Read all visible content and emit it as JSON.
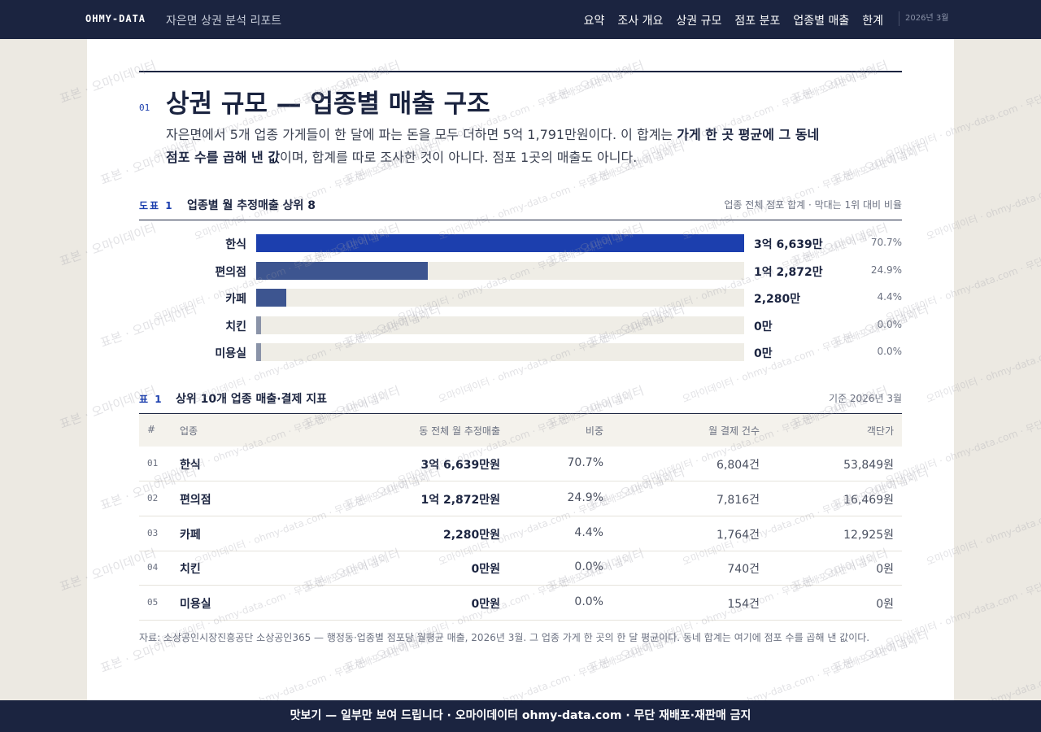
{
  "nav": {
    "brand": "OHMY-DATA",
    "report": "자은면 상권 분석 리포트",
    "links": [
      "요약",
      "조사 개요",
      "상권 규모",
      "점포 분포",
      "업종별 매출",
      "한계"
    ],
    "date": "2026년 3월"
  },
  "section": {
    "number": "01",
    "title": "상권 규모 — 업종별 매출 구조",
    "intro": {
      "before": "자은면에서 5개 업종 가게들이 한 달에 파는 돈을 모두 더하면 5억 1,791만원이다. 이 합계는 ",
      "bold": "가게 한 곳 평균에 그 동네 점포 수를 곱해 낸 값",
      "after": "이며, 합계를 따로 조사한 것이 아니다. 점포 1곳의 매출도 아니다."
    }
  },
  "figure": {
    "type": "bar",
    "label": "도표 1",
    "title": "업종별 월 추정매출 상위 8",
    "note": "업종 전체 점포 합계 · 막대는 1위 대비 비율",
    "categories": [
      "한식",
      "편의점",
      "카페",
      "치킨",
      "미용실"
    ],
    "values": [
      36639,
      12872,
      2280,
      0,
      0
    ],
    "value_labels": [
      "3억 6,639만",
      "1억 2,872만",
      "2,280만",
      "0만",
      "0만"
    ],
    "shares": [
      70.7,
      24.9,
      4.4,
      0,
      0
    ],
    "share_labels": [
      "70.7%",
      "24.9%",
      "4.4%",
      "0.0%",
      "0.0%"
    ],
    "colors": [
      "#1c3fae",
      "#3d5590",
      "#3d5590",
      "#8a93a8",
      "#8a93a8"
    ]
  },
  "table": {
    "label": "표 1",
    "title": "상위 10개 업종 매출·결제 지표",
    "basis": "기준 2026년 3월",
    "columns": [
      "#",
      "업종",
      "동 전체 월 추정매출",
      "비중",
      "월 결제 건수",
      "객단가"
    ],
    "rows": [
      [
        "01",
        "한식",
        "3억 6,639만원",
        "70.7%",
        "6,804건",
        "53,849원"
      ],
      [
        "02",
        "편의점",
        "1억 2,872만원",
        "24.9%",
        "7,816건",
        "16,469원"
      ],
      [
        "03",
        "카페",
        "2,280만원",
        "4.4%",
        "1,764건",
        "12,925원"
      ],
      [
        "04",
        "치킨",
        "0만원",
        "0.0%",
        "740건",
        "0원"
      ],
      [
        "05",
        "미용실",
        "0만원",
        "0.0%",
        "154건",
        "0원"
      ]
    ]
  },
  "source": "자료: 소상공인시장진흥공단 소상공인365 — 행정동·업종별 점포당 월평균 매출, 2026년 3월. 그 업종 가게 한 곳의 한 달 평균이다. 동네 합계는 여기에 점포 수를 곱해 낸 값이다.",
  "footer": "맛보기 — 일부만 보여 드립니다 · 오마이데이터 ohmy-data.com · 무단 재배포·재판매 금지",
  "watermarks": [
    "표본 · 오마이데이터",
    "오마이데이터 · ohmy-data.com · 무단 재배포·재판매 금지"
  ]
}
